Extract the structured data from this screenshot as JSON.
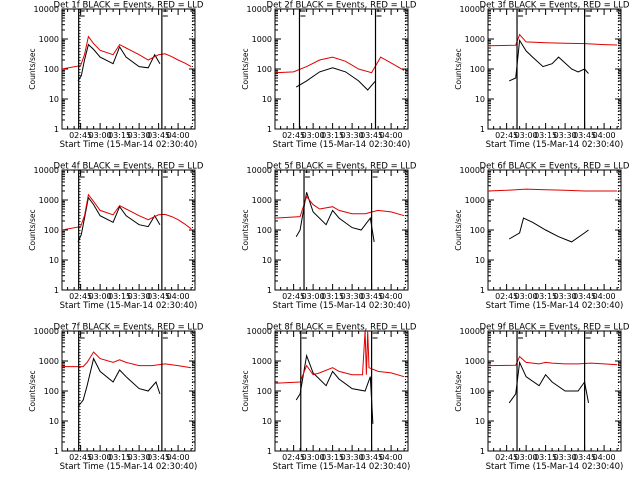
{
  "figure": {
    "colors": {
      "events": "#000000",
      "lld": "#e00000",
      "background": "#ffffff"
    }
  },
  "chart_data": [
    {
      "type": "line",
      "title": "Det 1f BLACK = Events, RED = LLD",
      "xlabel": "Start Time (15-Mar-14 02:30:40)",
      "ylabel": "Counts/sec",
      "yscale": "log",
      "ylim": [
        1,
        10000
      ],
      "xlim": [
        "02:30:40",
        "04:13:00"
      ],
      "xticks": [
        "02:45",
        "03:00",
        "03:15",
        "03:30",
        "03:45",
        "04:00"
      ],
      "yticks": [
        "1",
        "10",
        "100",
        "1000",
        "10000"
      ],
      "markers": {
        "solid": [
          "02:43:30",
          "03:47:30"
        ],
        "dotted": [
          "02:44:30",
          "04:11:00"
        ]
      },
      "series": [
        {
          "name": "Events",
          "color": "#000000",
          "t": [
            "02:43:00",
            "02:45:30",
            "02:48:00",
            "02:51:00",
            "02:55:00",
            "03:00:00",
            "03:10:00",
            "03:15:00",
            "03:20:00",
            "03:30:00",
            "03:37:00",
            "03:42:00",
            "03:46:00"
          ],
          "values": [
            40,
            60,
            200,
            650,
            450,
            250,
            150,
            550,
            250,
            120,
            110,
            300,
            150
          ]
        },
        {
          "name": "LLD",
          "color": "#e00000",
          "t": [
            "02:30:40",
            "02:45:00",
            "02:48:00",
            "02:51:00",
            "02:55:00",
            "03:00:00",
            "03:10:00",
            "03:15:00",
            "03:20:00",
            "03:30:00",
            "03:37:00",
            "03:45:00",
            "03:50:00",
            "03:55:00",
            "04:00:00",
            "04:05:00",
            "04:10:00"
          ],
          "values": [
            100,
            130,
            300,
            1200,
            700,
            420,
            300,
            650,
            500,
            300,
            200,
            300,
            320,
            260,
            200,
            160,
            120
          ]
        }
      ]
    },
    {
      "type": "line",
      "title": "Det 2f BLACK = Events, RED = LLD",
      "xlabel": "Start Time (15-Mar-14 02:30:40)",
      "ylabel": "Counts/sec",
      "yscale": "log",
      "ylim": [
        1,
        10000
      ],
      "xlim": [
        "02:30:40",
        "04:13:00"
      ],
      "xticks": [
        "02:45",
        "03:00",
        "03:15",
        "03:30",
        "03:45",
        "04:00"
      ],
      "yticks": [
        "1",
        "10",
        "100",
        "1000",
        "10000"
      ],
      "markers": {
        "solid": [
          "02:49:30",
          "03:48:00"
        ],
        "dotted": [
          "04:11:00"
        ]
      },
      "series": [
        {
          "name": "Events",
          "color": "#000000",
          "t": [
            "02:47:00",
            "02:55:00",
            "03:05:00",
            "03:15:00",
            "03:25:00",
            "03:35:00",
            "03:42:00",
            "03:48:00"
          ],
          "values": [
            25,
            40,
            80,
            110,
            80,
            40,
            20,
            40
          ]
        },
        {
          "name": "LLD",
          "color": "#e00000",
          "t": [
            "02:30:40",
            "02:45:00",
            "02:55:00",
            "03:05:00",
            "03:15:00",
            "03:25:00",
            "03:35:00",
            "03:45:00",
            "03:52:00",
            "04:00:00",
            "04:10:00"
          ],
          "values": [
            75,
            80,
            120,
            200,
            250,
            180,
            100,
            75,
            250,
            160,
            90
          ]
        }
      ]
    },
    {
      "type": "line",
      "title": "Det 3f BLACK = Events, RED = LLD",
      "xlabel": "Start Time (15-Mar-14 02:30:40)",
      "ylabel": "Counts/sec",
      "yscale": "log",
      "ylim": [
        1,
        10000
      ],
      "xlim": [
        "02:30:40",
        "04:13:00"
      ],
      "xticks": [
        "02:45",
        "03:00",
        "03:15",
        "03:30",
        "03:45",
        "04:00"
      ],
      "yticks": [
        "1",
        "10",
        "100",
        "1000",
        "10000"
      ],
      "markers": {
        "solid": [
          "02:53:00",
          "03:45:00"
        ],
        "dotted": [
          "04:11:00"
        ]
      },
      "series": [
        {
          "name": "Events",
          "color": "#000000",
          "t": [
            "02:47:00",
            "02:52:00",
            "02:55:00",
            "03:00:00",
            "03:05:00",
            "03:13:00",
            "03:20:00",
            "03:25:00",
            "03:35:00",
            "03:40:00",
            "03:45:00",
            "03:48:00"
          ],
          "values": [
            40,
            50,
            900,
            400,
            250,
            120,
            150,
            250,
            100,
            80,
            100,
            70
          ]
        },
        {
          "name": "LLD",
          "color": "#e00000",
          "t": [
            "02:30:40",
            "02:52:00",
            "02:55:00",
            "03:00:00",
            "03:15:00",
            "03:30:00",
            "03:45:00",
            "04:00:00",
            "04:10:00"
          ],
          "values": [
            600,
            620,
            1400,
            800,
            750,
            720,
            700,
            650,
            630
          ]
        }
      ]
    },
    {
      "type": "line",
      "title": "Det 4f BLACK = Events, RED = LLD",
      "xlabel": "Start Time (15-Mar-14 02:30:40)",
      "ylabel": "Counts/sec",
      "yscale": "log",
      "ylim": [
        1,
        10000
      ],
      "xlim": [
        "02:30:40",
        "04:13:00"
      ],
      "xticks": [
        "02:45",
        "03:00",
        "03:15",
        "03:30",
        "03:45",
        "04:00"
      ],
      "yticks": [
        "1",
        "10",
        "100",
        "1000",
        "10000"
      ],
      "markers": {
        "solid": [
          "02:43:30",
          "03:47:30"
        ],
        "dotted": [
          "02:44:30",
          "04:11:00"
        ]
      },
      "series": [
        {
          "name": "Events",
          "color": "#000000",
          "t": [
            "02:43:00",
            "02:45:30",
            "02:48:00",
            "02:51:00",
            "02:55:00",
            "03:00:00",
            "03:10:00",
            "03:15:00",
            "03:20:00",
            "03:30:00",
            "03:37:00",
            "03:42:00",
            "03:46:00"
          ],
          "values": [
            40,
            70,
            250,
            1200,
            700,
            300,
            180,
            600,
            300,
            150,
            130,
            300,
            150
          ]
        },
        {
          "name": "LLD",
          "color": "#e00000",
          "t": [
            "02:30:40",
            "02:45:00",
            "02:48:00",
            "02:51:00",
            "02:55:00",
            "03:00:00",
            "03:10:00",
            "03:15:00",
            "03:20:00",
            "03:30:00",
            "03:37:00",
            "03:45:00",
            "03:50:00",
            "03:55:00",
            "04:00:00",
            "04:05:00",
            "04:10:00"
          ],
          "values": [
            100,
            130,
            300,
            1500,
            900,
            450,
            320,
            650,
            500,
            300,
            220,
            320,
            330,
            280,
            220,
            160,
            110
          ]
        }
      ]
    },
    {
      "type": "line",
      "title": "Det 5f BLACK = Events, RED = LLD",
      "xlabel": "Start Time (15-Mar-14 02:30:40)",
      "ylabel": "Counts/sec",
      "yscale": "log",
      "ylim": [
        1,
        10000
      ],
      "xlim": [
        "02:30:40",
        "04:13:00"
      ],
      "xticks": [
        "02:45",
        "03:00",
        "03:15",
        "03:30",
        "03:45",
        "04:00"
      ],
      "yticks": [
        "1",
        "10",
        "100",
        "1000",
        "10000"
      ],
      "markers": {
        "solid": [
          "02:53:00",
          "03:45:00"
        ],
        "dotted": [
          "04:11:00"
        ]
      },
      "series": [
        {
          "name": "Events",
          "color": "#000000",
          "t": [
            "02:47:00",
            "02:50:00",
            "02:55:00",
            "03:00:00",
            "03:10:00",
            "03:15:00",
            "03:20:00",
            "03:30:00",
            "03:37:00",
            "03:44:00",
            "03:47:00"
          ],
          "values": [
            60,
            100,
            1800,
            400,
            150,
            450,
            250,
            120,
            100,
            250,
            40
          ]
        },
        {
          "name": "LLD",
          "color": "#e00000",
          "t": [
            "02:30:40",
            "02:50:00",
            "02:55:00",
            "03:00:00",
            "03:05:00",
            "03:15:00",
            "03:20:00",
            "03:30:00",
            "03:40:00",
            "03:50:00",
            "04:00:00",
            "04:10:00"
          ],
          "values": [
            250,
            280,
            1300,
            700,
            500,
            600,
            450,
            350,
            350,
            450,
            400,
            300
          ]
        }
      ]
    },
    {
      "type": "line",
      "title": "Det 6f BLACK = Events, RED = LLD",
      "xlabel": "Start Time (15-Mar-14 02:30:40)",
      "ylabel": "Counts/sec",
      "yscale": "log",
      "ylim": [
        1,
        10000
      ],
      "xlim": [
        "02:30:40",
        "04:13:00"
      ],
      "xticks": [
        "02:45",
        "03:00",
        "03:15",
        "03:30",
        "03:45",
        "04:00"
      ],
      "yticks": [
        "1",
        "10",
        "100",
        "1000",
        "10000"
      ],
      "markers": {
        "solid": [],
        "dotted": [
          "04:11:00"
        ]
      },
      "series": [
        {
          "name": "Events",
          "color": "#000000",
          "t": [
            "02:47:00",
            "02:55:00",
            "02:58:00",
            "03:05:00",
            "03:15:00",
            "03:25:00",
            "03:35:00",
            "03:45:00",
            "03:48:00"
          ],
          "values": [
            50,
            80,
            250,
            180,
            100,
            60,
            40,
            80,
            100
          ]
        },
        {
          "name": "LLD",
          "color": "#e00000",
          "t": [
            "02:30:40",
            "02:45:00",
            "03:00:00",
            "03:15:00",
            "03:30:00",
            "03:45:00",
            "04:00:00",
            "04:10:00"
          ],
          "values": [
            2000,
            2100,
            2300,
            2200,
            2100,
            2000,
            2000,
            2000
          ]
        }
      ]
    },
    {
      "type": "line",
      "title": "Det 7f BLACK = Events, RED = LLD",
      "xlabel": "Start Time (15-Mar-14 02:30:40)",
      "ylabel": "Counts/sec",
      "yscale": "log",
      "ylim": [
        1,
        10000
      ],
      "xlim": [
        "02:30:40",
        "04:13:00"
      ],
      "xticks": [
        "02:45",
        "03:00",
        "03:15",
        "03:30",
        "03:45",
        "04:00"
      ],
      "yticks": [
        "1",
        "10",
        "100",
        "1000",
        "10000"
      ],
      "markers": {
        "solid": [
          "02:43:30",
          "03:47:30"
        ],
        "dotted": [
          "02:44:30",
          "04:11:00"
        ]
      },
      "series": [
        {
          "name": "Events",
          "color": "#000000",
          "t": [
            "02:43:00",
            "02:47:00",
            "02:50:00",
            "02:55:00",
            "03:00:00",
            "03:10:00",
            "03:15:00",
            "03:20:00",
            "03:30:00",
            "03:37:00",
            "03:43:00",
            "03:46:00"
          ],
          "values": [
            30,
            50,
            150,
            1200,
            450,
            200,
            500,
            300,
            120,
            100,
            200,
            80
          ]
        },
        {
          "name": "LLD",
          "color": "#e00000",
          "t": [
            "02:30:40",
            "02:47:00",
            "02:50:00",
            "02:55:00",
            "03:00:00",
            "03:10:00",
            "03:15:00",
            "03:20:00",
            "03:30:00",
            "03:40:00",
            "03:50:00",
            "04:00:00",
            "04:10:00"
          ],
          "values": [
            650,
            650,
            900,
            2000,
            1200,
            900,
            1100,
            900,
            700,
            700,
            800,
            700,
            600
          ]
        }
      ]
    },
    {
      "type": "line",
      "title": "Det 8f BLACK = Events, RED = LLD",
      "xlabel": "Start Time (15-Mar-14 02:30:40)",
      "ylabel": "Counts/sec",
      "yscale": "log",
      "ylim": [
        1,
        10000
      ],
      "xlim": [
        "02:30:40",
        "04:13:00"
      ],
      "xticks": [
        "02:45",
        "03:00",
        "03:15",
        "03:30",
        "03:45",
        "04:00"
      ],
      "yticks": [
        "1",
        "10",
        "100",
        "1000",
        "10000"
      ],
      "markers": {
        "solid": [
          "02:50:30",
          "03:45:00"
        ],
        "dotted": [
          "04:11:00"
        ]
      },
      "series": [
        {
          "name": "Events",
          "color": "#000000",
          "t": [
            "02:47:00",
            "02:50:00",
            "02:55:00",
            "03:00:00",
            "03:10:00",
            "03:15:00",
            "03:20:00",
            "03:30:00",
            "03:40:00",
            "03:44:00",
            "03:46:00"
          ],
          "values": [
            50,
            80,
            1500,
            400,
            150,
            450,
            250,
            120,
            100,
            300,
            8
          ]
        },
        {
          "name": "LLD",
          "color": "#e00000",
          "t": [
            "02:30:40",
            "02:50:00",
            "02:55:00",
            "03:00:00",
            "03:05:00",
            "03:15:00",
            "03:20:00",
            "03:30:00",
            "03:38:00",
            "03:40:00",
            "03:41:00",
            "03:42:00",
            "03:43:00",
            "03:50:00",
            "04:00:00",
            "04:10:00"
          ],
          "values": [
            180,
            200,
            700,
            350,
            400,
            600,
            450,
            350,
            350,
            10000,
            350,
            10000,
            600,
            450,
            400,
            300
          ]
        }
      ]
    },
    {
      "type": "line",
      "title": "Det 9f BLACK = Events, RED = LLD",
      "xlabel": "Start Time (15-Mar-14 02:30:40)",
      "ylabel": "Counts/sec",
      "yscale": "log",
      "ylim": [
        1,
        10000
      ],
      "xlim": [
        "02:30:40",
        "04:13:00"
      ],
      "xticks": [
        "02:45",
        "03:00",
        "03:15",
        "03:30",
        "03:45",
        "04:00"
      ],
      "yticks": [
        "1",
        "10",
        "100",
        "1000",
        "10000"
      ],
      "markers": {
        "solid": [
          "02:53:00",
          "03:45:00"
        ],
        "dotted": [
          "04:11:00"
        ]
      },
      "series": [
        {
          "name": "Events",
          "color": "#000000",
          "t": [
            "02:47:00",
            "02:52:00",
            "02:55:00",
            "03:00:00",
            "03:10:00",
            "03:15:00",
            "03:20:00",
            "03:30:00",
            "03:40:00",
            "03:45:00",
            "03:48:00"
          ],
          "values": [
            40,
            80,
            900,
            300,
            150,
            350,
            200,
            100,
            100,
            200,
            40
          ]
        },
        {
          "name": "LLD",
          "color": "#e00000",
          "t": [
            "02:30:40",
            "02:52:00",
            "02:55:00",
            "03:00:00",
            "03:10:00",
            "03:15:00",
            "03:20:00",
            "03:30:00",
            "03:40:00",
            "03:50:00",
            "04:00:00",
            "04:10:00"
          ],
          "values": [
            700,
            720,
            1400,
            900,
            800,
            900,
            850,
            800,
            800,
            850,
            800,
            750
          ]
        }
      ]
    }
  ]
}
